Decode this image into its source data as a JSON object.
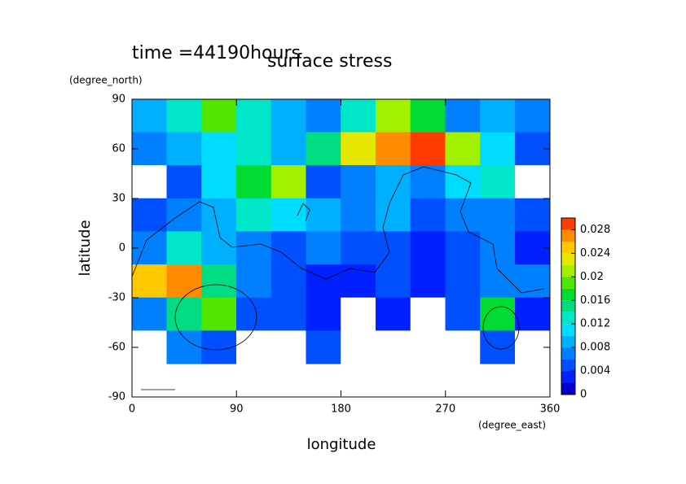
{
  "chart_data": {
    "type": "contour",
    "title": "surface stress",
    "subtitle": "time =44190hours",
    "x_label": "longitude",
    "x_units": "(degree_east)",
    "y_label": "latitude",
    "y_units": "(degree_north)",
    "xlim": [
      0,
      360
    ],
    "ylim": [
      -90,
      90
    ],
    "xticks": [
      0,
      90,
      180,
      270,
      360
    ],
    "yticks": [
      -90,
      -60,
      -30,
      0,
      30,
      60,
      90
    ],
    "x": [
      15,
      45,
      75,
      105,
      135,
      165,
      195,
      225,
      255,
      285,
      315,
      345
    ],
    "y": [
      80,
      60,
      40,
      20,
      0,
      -20,
      -40,
      -60
    ],
    "z": [
      [
        0.008,
        0.012,
        0.018,
        0.012,
        0.008,
        0.006,
        0.012,
        0.02,
        0.016,
        0.006,
        0.008,
        0.006
      ],
      [
        0.006,
        0.008,
        0.01,
        0.012,
        0.008,
        0.014,
        0.022,
        0.026,
        0.028,
        0.02,
        0.01,
        0.004
      ],
      [
        0,
        0.004,
        0.01,
        0.016,
        0.02,
        0.004,
        0.006,
        0.008,
        0.006,
        0.01,
        0.012,
        0
      ],
      [
        0.004,
        0.006,
        0.008,
        0.012,
        0.01,
        0.008,
        0.006,
        0.008,
        0.004,
        0.006,
        0.006,
        0.004
      ],
      [
        0.006,
        0.012,
        0.008,
        0.006,
        0.004,
        0.006,
        0.004,
        0.004,
        0.002,
        0.004,
        0.006,
        0.003
      ],
      [
        0.024,
        0.026,
        0.014,
        0.006,
        0.004,
        0.003,
        0.002,
        0.004,
        0.003,
        0.004,
        0.006,
        0.006
      ],
      [
        0.006,
        0.014,
        0.018,
        0.004,
        0.004,
        0.002,
        0,
        0.002,
        0,
        0.004,
        0.016,
        0.002
      ],
      [
        0,
        0.006,
        0.004,
        0,
        0,
        0.004,
        0,
        0,
        0,
        0,
        0.004,
        0
      ]
    ],
    "clim": [
      0,
      0.03
    ],
    "levels": [
      0,
      0.002,
      0.004,
      0.006,
      0.008,
      0.01,
      0.012,
      0.014,
      0.016,
      0.018,
      0.02,
      0.022,
      0.024,
      0.026,
      0.028,
      0.03
    ],
    "colors": [
      "#0000c8",
      "#0020ff",
      "#0050ff",
      "#0080ff",
      "#00b0ff",
      "#00dcff",
      "#00e6c8",
      "#00dc82",
      "#00dc32",
      "#50e600",
      "#a0f000",
      "#e6e600",
      "#ffc800",
      "#ff8c00",
      "#ff3c00"
    ],
    "colorbar_ticks": [
      0,
      0.004,
      0.008,
      0.012,
      0.016,
      0.02,
      0.024,
      0.028
    ]
  }
}
